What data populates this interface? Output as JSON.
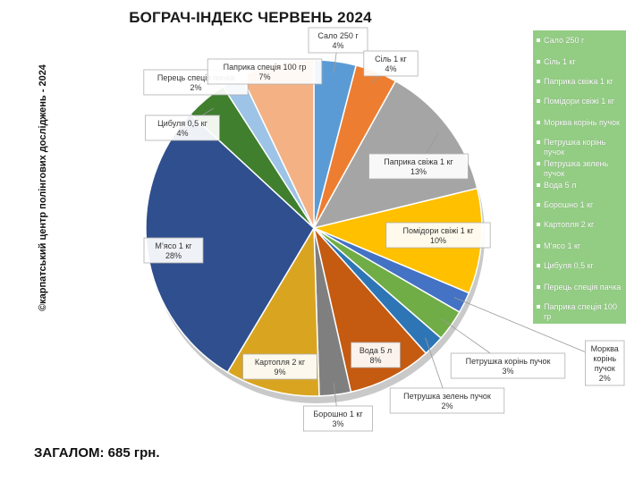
{
  "title": "БОГРАЧ-ІНДЕКС ЧЕРВЕНЬ 2024",
  "credit": "©карпатський центр полінгових досліджень - 2024",
  "total": "ЗАГАЛОМ: 685 грн.",
  "chart_data": {
    "type": "pie",
    "title": "БОГРАЧ-ІНДЕКС ЧЕРВЕНЬ 2024",
    "legend_position": "right",
    "slices": [
      {
        "label": "Сало 250 г",
        "pct_label": "4%",
        "value": 4,
        "color": "#5b9bd5"
      },
      {
        "label": "Сіль 1 кг",
        "pct_label": "4%",
        "value": 4,
        "color": "#ed7d31"
      },
      {
        "label": "Паприка свіжа 1 кг",
        "pct_label": "13%",
        "value": 13,
        "color": "#a5a5a5"
      },
      {
        "label": "Помідори свіжі 1 кг",
        "pct_label": "10%",
        "value": 10,
        "color": "#ffc000"
      },
      {
        "label": "Морква корінь пучок",
        "pct_label": "2%",
        "value": 2,
        "color": "#4472c4"
      },
      {
        "label": "Петрушка корінь пучок",
        "pct_label": "3%",
        "value": 3,
        "color": "#70ad47"
      },
      {
        "label": "Петрушка зелень пучок",
        "pct_label": "2%",
        "value": 2,
        "color": "#2e75b6"
      },
      {
        "label": "Вода 5 л",
        "pct_label": "8%",
        "value": 8,
        "color": "#c55a11"
      },
      {
        "label": "Борошно 1 кг",
        "pct_label": "3%",
        "value": 3,
        "color": "#7f7f7f"
      },
      {
        "label": "Картопля 2 кг",
        "pct_label": "9%",
        "value": 9,
        "color": "#d9a520"
      },
      {
        "label": "М'ясо 1 кг",
        "pct_label": "28%",
        "value": 28,
        "color": "#2f4f8f"
      },
      {
        "label": "Цибуля 0,5 кг",
        "pct_label": "4%",
        "value": 4,
        "color": "#3f7f2e"
      },
      {
        "label": "Перець спеція пачка",
        "pct_label": "2%",
        "value": 2,
        "color": "#9dc3e6"
      },
      {
        "label": "Паприка спеція 100 гр",
        "pct_label": "7%",
        "value": 7,
        "color": "#f4b183"
      }
    ],
    "slice_labels": [
      {
        "text": "Сало 250 г",
        "pct": "4%"
      },
      {
        "text": "Сіль 1 кг",
        "pct": "4%"
      },
      {
        "text": "Паприка свіжа 1 кг",
        "pct": "13%"
      },
      {
        "text": "Помідори свіжі 1 кг",
        "pct": "10%"
      },
      {
        "text": "Морква\nкорінь\nпучок",
        "pct": "2%"
      },
      {
        "text": "Петрушка корінь пучок",
        "pct": "3%"
      },
      {
        "text": "Петрушка зелень пучок",
        "pct": "2%"
      },
      {
        "text": "Вода 5 л",
        "pct": "8%"
      },
      {
        "text": "Борошно 1 кг",
        "pct": "3%"
      },
      {
        "text": "Картопля 2 кг",
        "pct": "9%"
      },
      {
        "text": "М’ясо 1 кг",
        "pct": "28%"
      },
      {
        "text": "Цибуля 0,5 кг",
        "pct": "4%"
      },
      {
        "text": "Перець спеція пачка",
        "pct": "2%"
      },
      {
        "text": "Паприка спеція 100 гр",
        "pct": "7%"
      }
    ],
    "legend": [
      "Сало 250 г",
      "Сіль 1 кг",
      "Паприка свіжа 1 кг",
      "Помідори свіжі 1 кг",
      "Морква корінь пучок",
      "Петрушка корінь пучок",
      "Петрушка зелень пучок",
      "Вода 5 л",
      "Борошно 1 кг",
      "Картопля 2 кг",
      "М’ясо 1 кг",
      "Цибуля 0,5 кг",
      "Перець спеція пачка",
      "Паприка спеція 100 гр"
    ]
  }
}
